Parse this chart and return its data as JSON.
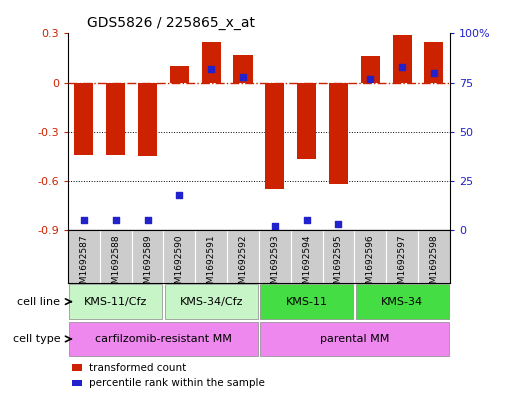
{
  "title": "GDS5826 / 225865_x_at",
  "samples": [
    "GSM1692587",
    "GSM1692588",
    "GSM1692589",
    "GSM1692590",
    "GSM1692591",
    "GSM1692592",
    "GSM1692593",
    "GSM1692594",
    "GSM1692595",
    "GSM1692596",
    "GSM1692597",
    "GSM1692598"
  ],
  "transformed_count": [
    -0.44,
    -0.44,
    -0.45,
    0.1,
    0.25,
    0.17,
    -0.65,
    -0.47,
    -0.62,
    0.16,
    0.29,
    0.25
  ],
  "percentile_rank": [
    5,
    5,
    5,
    18,
    82,
    78,
    2,
    5,
    3,
    77,
    83,
    80
  ],
  "ylim_left": [
    -0.9,
    0.3
  ],
  "ylim_right": [
    0,
    100
  ],
  "yticks_left": [
    0.3,
    0.0,
    -0.3,
    -0.6,
    -0.9
  ],
  "yticks_right": [
    100,
    75,
    50,
    25,
    0
  ],
  "hline_y": 0.0,
  "dotted_lines": [
    -0.3,
    -0.6
  ],
  "cell_line_groups": [
    {
      "label": "KMS-11/Cfz",
      "start": 0,
      "end": 3,
      "light": true
    },
    {
      "label": "KMS-34/Cfz",
      "start": 3,
      "end": 6,
      "light": true
    },
    {
      "label": "KMS-11",
      "start": 6,
      "end": 9,
      "light": false
    },
    {
      "label": "KMS-34",
      "start": 9,
      "end": 12,
      "light": false
    }
  ],
  "cell_type_groups": [
    {
      "label": "carfilzomib-resistant MM",
      "start": 0,
      "end": 6
    },
    {
      "label": "parental MM",
      "start": 6,
      "end": 12
    }
  ],
  "cell_line_light_color": "#c8f5c8",
  "cell_line_dark_color": "#44dd44",
  "cell_type_color": "#ee88ee",
  "sample_bg_color": "#cccccc",
  "bar_color": "#cc2200",
  "dot_color": "#2222cc",
  "bg_color": "#ffffff",
  "left_tick_color": "#cc2200",
  "right_tick_color": "#2222cc",
  "legend_items": [
    {
      "color": "#cc2200",
      "label": "transformed count"
    },
    {
      "color": "#2222cc",
      "label": "percentile rank within the sample"
    }
  ]
}
